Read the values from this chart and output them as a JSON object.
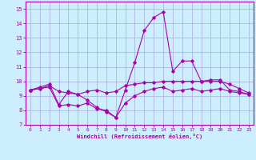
{
  "xlabel": "Windchill (Refroidissement éolien,°C)",
  "ylim": [
    7,
    15.5
  ],
  "xlim": [
    -0.5,
    23.5
  ],
  "yticks": [
    7,
    8,
    9,
    10,
    11,
    12,
    13,
    14,
    15
  ],
  "xticks": [
    0,
    1,
    2,
    3,
    4,
    5,
    6,
    7,
    8,
    9,
    10,
    11,
    12,
    13,
    14,
    15,
    16,
    17,
    18,
    19,
    20,
    21,
    22,
    23
  ],
  "background_color": "#cceeff",
  "grid_color": "#aaaadd",
  "line_color": "#aa00aa",
  "series1_x": [
    0,
    1,
    2,
    3,
    4,
    5,
    6,
    7,
    8,
    9,
    10,
    11,
    12,
    13,
    14,
    15,
    16,
    17,
    18,
    19,
    20,
    21,
    22,
    23
  ],
  "series1_y": [
    9.4,
    9.6,
    9.8,
    8.4,
    9.3,
    9.1,
    8.7,
    8.2,
    7.9,
    7.5,
    9.4,
    11.3,
    13.5,
    14.4,
    14.8,
    10.7,
    11.4,
    11.4,
    10.0,
    10.1,
    10.1,
    9.4,
    9.3,
    9.1
  ],
  "series2_x": [
    0,
    1,
    2,
    3,
    4,
    5,
    6,
    7,
    8,
    9,
    10,
    11,
    12,
    13,
    14,
    15,
    16,
    17,
    18,
    19,
    20,
    21,
    22,
    23
  ],
  "series2_y": [
    9.4,
    9.5,
    9.7,
    9.3,
    9.2,
    9.1,
    9.3,
    9.4,
    9.2,
    9.3,
    9.7,
    9.8,
    9.9,
    9.9,
    10.0,
    10.0,
    10.0,
    10.0,
    10.0,
    10.0,
    10.0,
    9.8,
    9.5,
    9.2
  ],
  "series3_x": [
    0,
    1,
    2,
    3,
    4,
    5,
    6,
    7,
    8,
    9,
    10,
    11,
    12,
    13,
    14,
    15,
    16,
    17,
    18,
    19,
    20,
    21,
    22,
    23
  ],
  "series3_y": [
    9.4,
    9.5,
    9.6,
    8.3,
    8.4,
    8.3,
    8.5,
    8.1,
    8.0,
    7.5,
    8.5,
    9.0,
    9.3,
    9.5,
    9.6,
    9.3,
    9.4,
    9.5,
    9.3,
    9.4,
    9.5,
    9.3,
    9.2,
    9.1
  ]
}
